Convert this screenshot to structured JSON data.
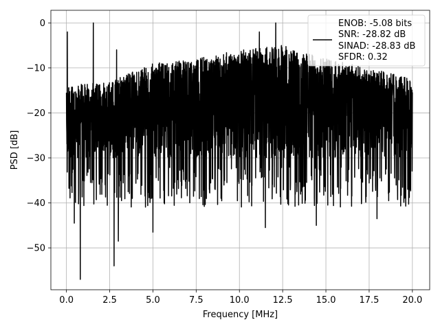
{
  "chart_data": {
    "type": "line",
    "title": "",
    "xlabel": "Frequency [MHz]",
    "ylabel": "PSD [dB]",
    "xlim": [
      -0.9,
      21.0
    ],
    "ylim": [
      -59.3,
      2.8
    ],
    "x_ticks": [
      {
        "value": 0.0,
        "label": "0.0"
      },
      {
        "value": 2.5,
        "label": "2.5"
      },
      {
        "value": 5.0,
        "label": "5.0"
      },
      {
        "value": 7.5,
        "label": "7.5"
      },
      {
        "value": 10.0,
        "label": "10.0"
      },
      {
        "value": 12.5,
        "label": "12.5"
      },
      {
        "value": 15.0,
        "label": "15.0"
      },
      {
        "value": 17.5,
        "label": "17.5"
      },
      {
        "value": 20.0,
        "label": "20.0"
      }
    ],
    "y_ticks": [
      {
        "value": 0,
        "label": "0"
      },
      {
        "value": -10,
        "label": "−10"
      },
      {
        "value": -20,
        "label": "−20"
      },
      {
        "value": -30,
        "label": "−30"
      },
      {
        "value": -40,
        "label": "−40"
      },
      {
        "value": -50,
        "label": "−50"
      }
    ],
    "grid": true,
    "legend_position": "top-right",
    "legend_entries": [
      "ENOB: -5.08 bits",
      "SNR: -28.82 dB",
      "SINAD: -28.83 dB",
      "SFDR: 0.32"
    ],
    "series": [
      {
        "color": "#000000",
        "x_range": [
          0.0,
          20.0
        ],
        "typical_band_db": [
          -32,
          -12
        ],
        "upper_envelope": [
          [
            0.0,
            -14
          ],
          [
            2.5,
            -13
          ],
          [
            5.0,
            -9
          ],
          [
            7.5,
            -8
          ],
          [
            10.0,
            -6
          ],
          [
            12.5,
            -5
          ],
          [
            15.0,
            -8
          ],
          [
            17.5,
            -10
          ],
          [
            20.0,
            -12
          ]
        ],
        "peaks": [
          [
            0.05,
            -2
          ],
          [
            1.55,
            0
          ],
          [
            2.9,
            -6
          ],
          [
            11.15,
            -2
          ],
          [
            12.1,
            0
          ]
        ],
        "dips": [
          [
            0.8,
            -57
          ],
          [
            2.75,
            -54
          ],
          [
            3.0,
            -48.5
          ],
          [
            5.0,
            -46.5
          ],
          [
            11.5,
            -45.5
          ],
          [
            14.45,
            -45
          ],
          [
            17.95,
            -43.5
          ],
          [
            0.45,
            -44.5
          ]
        ]
      }
    ]
  }
}
